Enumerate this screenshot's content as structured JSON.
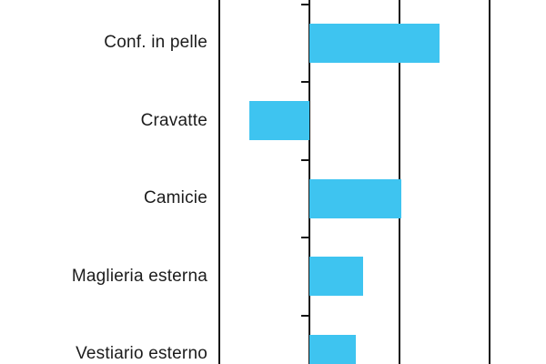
{
  "chart_data": {
    "type": "bar",
    "orientation": "horizontal",
    "title": "",
    "xlabel": "",
    "ylabel": "",
    "categories": [
      "Conf. in pelle",
      "Cravatte",
      "Camicie",
      "Maglieria esterna",
      "Vestiario esterno"
    ],
    "values": [
      1.44,
      -0.67,
      1.02,
      0.6,
      0.52
    ],
    "gridline_values": [
      -1,
      0,
      1,
      2
    ],
    "axis_numeric_labels_visible": false,
    "legend_position": "none",
    "grid": "vertical-gridlines",
    "zero_axis_has_category_ticks": true,
    "bottom_row_clipped": true,
    "bar_color": "#3EC4F0",
    "line_color": "#141414",
    "text_color": "#1C1C1C",
    "background_color": "#FFFFFF"
  }
}
